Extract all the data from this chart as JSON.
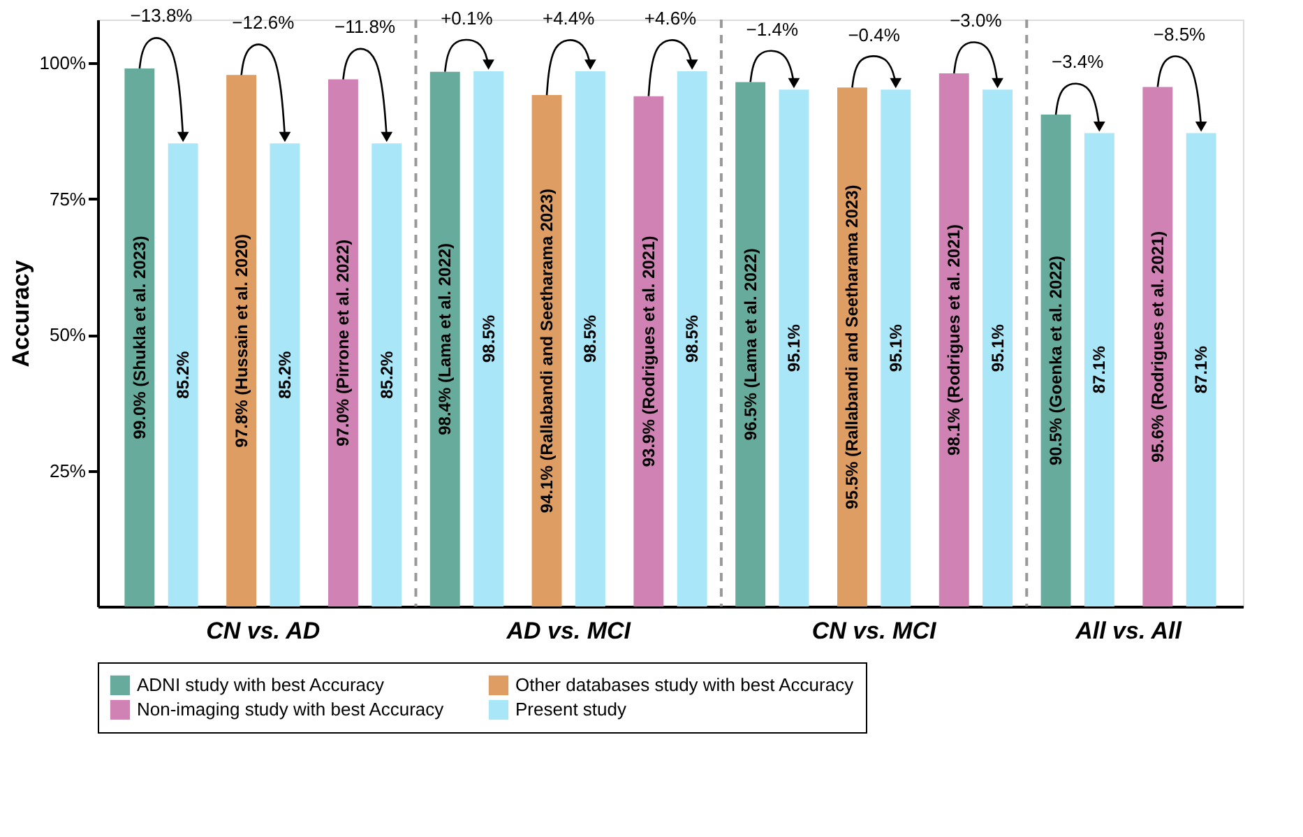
{
  "chart_data": {
    "type": "bar",
    "ylabel": "Accuracy",
    "ylim": [
      0,
      108
    ],
    "yticks": [
      {
        "value": 25,
        "label": "25%"
      },
      {
        "value": 50,
        "label": "50%"
      },
      {
        "value": 75,
        "label": "75%"
      },
      {
        "value": 100,
        "label": "100%"
      }
    ],
    "categories": [
      null,
      null,
      null,
      null,
      null,
      null,
      null,
      null,
      null,
      null,
      null,
      null,
      null,
      null,
      null,
      null,
      null,
      null,
      null,
      null,
      null,
      null
    ],
    "series": [
      {
        "name": "ADNI study with best Accuracy",
        "color": "#66ab9c",
        "values": [
          99.0,
          null,
          null,
          null,
          null,
          null,
          98.4,
          null,
          null,
          null,
          null,
          null,
          96.5,
          null,
          null,
          null,
          null,
          null,
          90.5,
          null,
          null,
          null
        ],
        "value_labels": [
          "99.0% (Shukla et al. 2023)",
          null,
          null,
          null,
          null,
          null,
          "98.4% (Lama et al. 2022)",
          null,
          null,
          null,
          null,
          null,
          "96.5% (Lama et al. 2022)",
          null,
          null,
          null,
          null,
          null,
          "90.5% (Goenka et al. 2022)",
          null,
          null,
          null
        ]
      },
      {
        "name": "Other databases study with best Accuracy",
        "color": "#de9d62",
        "values": [
          null,
          null,
          97.8,
          null,
          null,
          null,
          null,
          null,
          94.1,
          null,
          null,
          null,
          null,
          null,
          95.5,
          null,
          null,
          null,
          null,
          null,
          null,
          null
        ],
        "value_labels": [
          null,
          null,
          "97.8% (Hussain et al. 2020)",
          null,
          null,
          null,
          null,
          null,
          "94.1% (Rallabandi and Seetharama 2023)",
          null,
          null,
          null,
          null,
          null,
          "95.5% (Rallabandi and Seetharama 2023)",
          null,
          null,
          null,
          null,
          null,
          null,
          null
        ]
      },
      {
        "name": "Non-imaging study with best Accuracy",
        "color": "#cf82b3",
        "values": [
          null,
          null,
          null,
          null,
          97.0,
          null,
          null,
          null,
          null,
          null,
          93.9,
          null,
          null,
          null,
          null,
          null,
          98.1,
          null,
          null,
          null,
          95.6,
          null
        ],
        "value_labels": [
          null,
          null,
          null,
          null,
          "97.0% (Pirrone et al. 2022)",
          null,
          null,
          null,
          null,
          null,
          "93.9% (Rodrigues et al. 2021)",
          null,
          null,
          null,
          null,
          null,
          "98.1% (Rodrigues et al. 2021)",
          null,
          null,
          null,
          "95.6% (Rodrigues et al. 2021)",
          null
        ]
      },
      {
        "name": "Present study",
        "color": "#a9e6f8",
        "values": [
          null,
          85.2,
          null,
          85.2,
          null,
          85.2,
          null,
          98.5,
          null,
          98.5,
          null,
          98.5,
          null,
          95.1,
          null,
          95.1,
          null,
          95.1,
          null,
          87.1,
          null,
          87.1
        ],
        "value_labels": [
          null,
          "85.2%",
          null,
          "85.2%",
          null,
          "85.2%",
          null,
          "98.5%",
          null,
          "98.5%",
          null,
          "98.5%",
          null,
          "95.1%",
          null,
          "95.1%",
          null,
          "95.1%",
          null,
          "87.1%",
          null,
          "87.1%"
        ]
      }
    ],
    "annotations": [
      "−13.8%",
      "−12.6%",
      "−11.8%",
      "+0.1%",
      "+4.4%",
      "+4.6%",
      "−1.4%",
      "−0.4%",
      "−3.0%",
      "−3.4%",
      "−8.5%",
      "CN vs. AD",
      "AD vs. MCI",
      "CN vs. MCI",
      "All vs. All"
    ],
    "legend": "bottom"
  }
}
